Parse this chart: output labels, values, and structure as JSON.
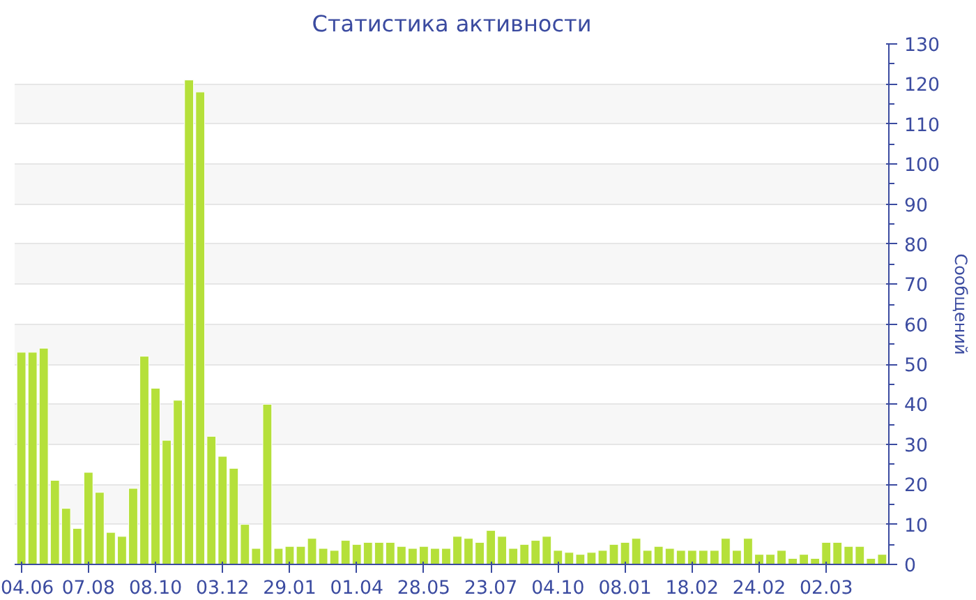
{
  "chart_data": {
    "type": "bar",
    "title": "Статистика активности",
    "ylabel": "Сообщений",
    "categories": [
      "04.06",
      null,
      null,
      null,
      null,
      null,
      "07.08",
      null,
      null,
      null,
      null,
      null,
      "08.10",
      null,
      null,
      null,
      null,
      null,
      "03.12",
      null,
      null,
      null,
      null,
      null,
      "29.01",
      null,
      null,
      null,
      null,
      null,
      "01.04",
      null,
      null,
      null,
      null,
      null,
      "28.05",
      null,
      null,
      null,
      null,
      null,
      "23.07",
      null,
      null,
      null,
      null,
      null,
      "04.10",
      null,
      null,
      null,
      null,
      null,
      "08.01",
      null,
      null,
      null,
      null,
      null,
      "18.02",
      null,
      null,
      null,
      null,
      null,
      "24.02",
      null,
      null,
      null,
      null,
      null,
      "02.03",
      null,
      null,
      null,
      null,
      null
    ],
    "values": [
      53,
      53,
      54,
      21,
      14,
      9,
      23,
      18,
      8,
      7,
      19,
      52,
      44,
      31,
      41,
      121,
      118,
      32,
      27,
      24,
      10,
      4,
      40,
      4,
      4.5,
      4.5,
      6.5,
      4,
      3.5,
      6,
      5,
      5.5,
      5.5,
      5.5,
      4.5,
      4,
      4.5,
      4,
      4,
      7,
      6.5,
      5.5,
      8.5,
      7,
      4,
      5,
      6,
      7,
      3.5,
      3,
      2.5,
      3,
      3.5,
      5,
      5.5,
      6.5,
      3.5,
      4.5,
      4,
      3.5,
      3.5,
      3.5,
      3.5,
      6.5,
      3.5,
      6.5,
      2.5,
      2.5,
      3.5,
      1.5,
      2.5,
      1.5,
      5.5,
      5.5,
      4.5,
      4.5,
      1.5,
      2.5
    ],
    "color": "#b5e03a",
    "ylim": [
      0,
      130
    ],
    "yticks": [
      0,
      10,
      20,
      30,
      40,
      50,
      60,
      70,
      80,
      90,
      100,
      110,
      120,
      130
    ],
    "grid": "y"
  }
}
